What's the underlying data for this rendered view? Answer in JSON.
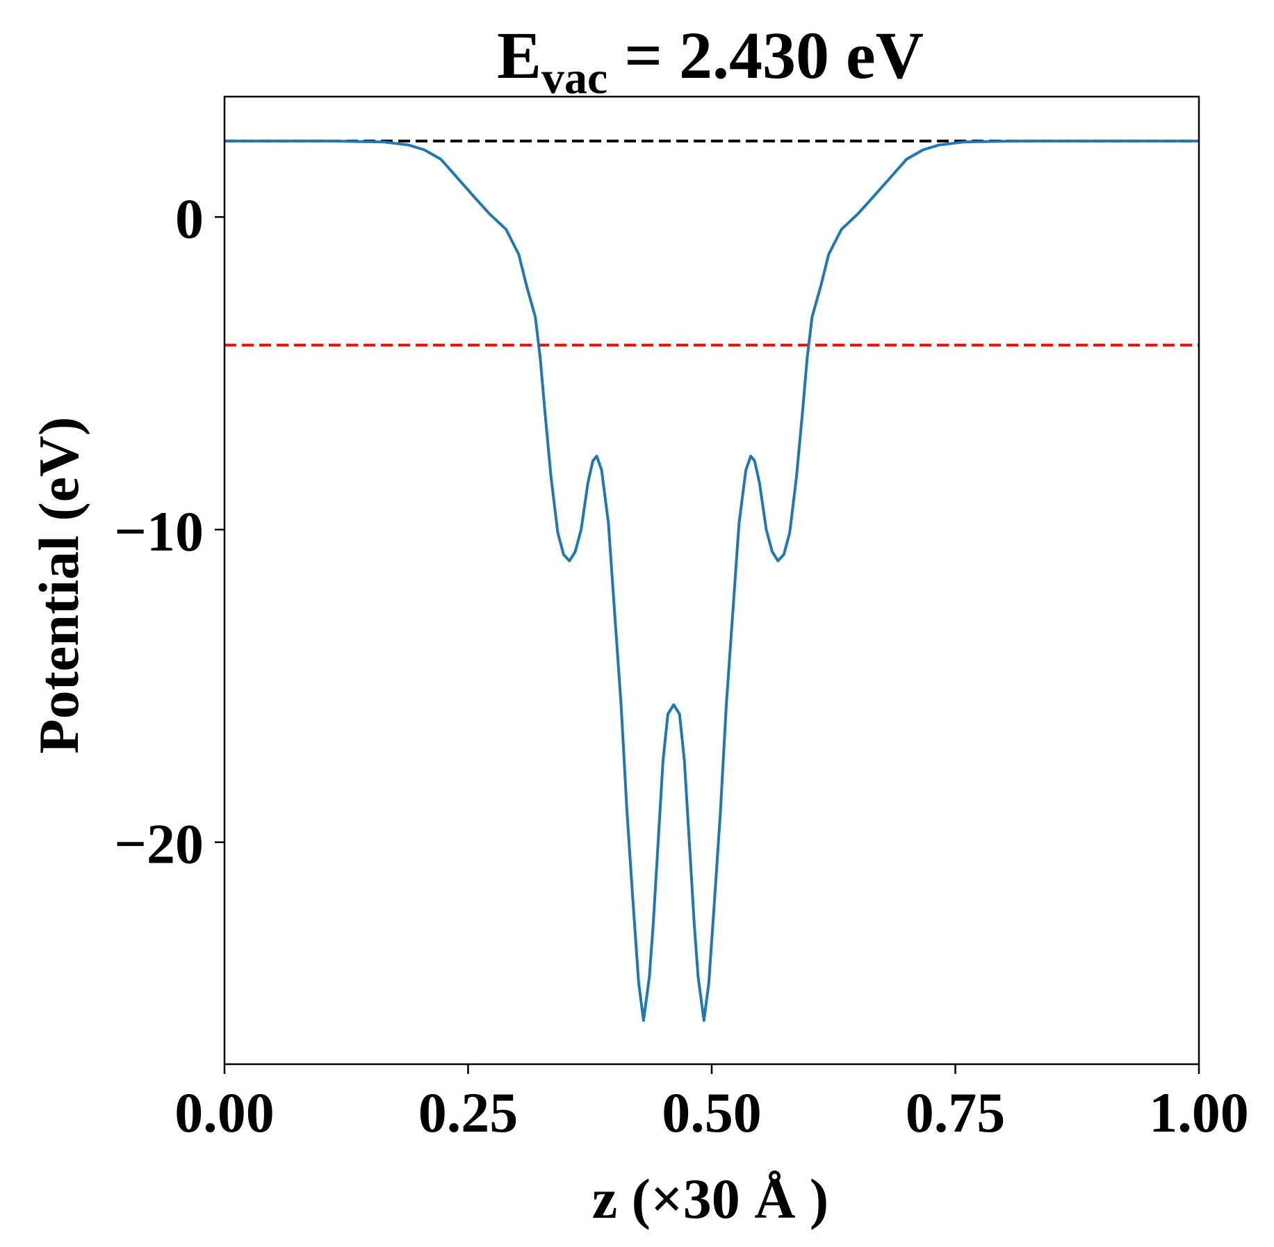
{
  "chart_data": {
    "type": "line",
    "title_main": "E",
    "title_sub": "vac",
    "title_rest": " = 2.430 eV",
    "xlabel": "z (×30 Å )",
    "ylabel": "Potential (eV)",
    "xlim": [
      0,
      1
    ],
    "ylim": [
      -27.1,
      3.85
    ],
    "xticks": [
      0,
      0.25,
      0.5,
      0.75,
      1.0
    ],
    "xtick_labels": [
      "0.00",
      "0.25",
      "0.50",
      "0.75",
      "1.00"
    ],
    "yticks": [
      0,
      -10,
      -20
    ],
    "ytick_labels": [
      "0",
      "−10",
      "−20"
    ],
    "grid": false,
    "series": [
      {
        "color": "#1f77b4",
        "x": [
          0,
          0.105,
          0.163,
          0.189,
          0.205,
          0.222,
          0.239,
          0.256,
          0.272,
          0.289,
          0.302,
          0.31,
          0.319,
          0.324,
          0.329,
          0.335,
          0.342,
          0.348,
          0.354,
          0.36,
          0.366,
          0.373,
          0.378,
          0.382,
          0.387,
          0.394,
          0.4,
          0.407,
          0.413,
          0.419,
          0.425,
          0.43,
          0.436,
          0.44,
          0.445,
          0.45,
          0.455,
          0.461,
          0.467,
          0.472,
          0.477,
          0.482,
          0.486,
          0.492,
          0.497,
          0.503,
          0.509,
          0.515,
          0.522,
          0.528,
          0.535,
          0.54,
          0.544,
          0.549,
          0.556,
          0.562,
          0.568,
          0.574,
          0.58,
          0.587,
          0.593,
          0.598,
          0.603,
          0.612,
          0.62,
          0.633,
          0.65,
          0.666,
          0.683,
          0.7,
          0.717,
          0.733,
          0.759,
          0.817,
          0.9,
          1.0
        ],
        "y": [
          2.43,
          2.43,
          2.4,
          2.3,
          2.15,
          1.85,
          1.25,
          0.65,
          0.1,
          -0.4,
          -1.2,
          -2.2,
          -3.2,
          -4.5,
          -6.3,
          -8.3,
          -10.1,
          -10.8,
          -11.0,
          -10.7,
          -10.0,
          -8.5,
          -7.8,
          -7.65,
          -8.1,
          -9.8,
          -12.5,
          -15.6,
          -19.0,
          -21.8,
          -24.5,
          -25.7,
          -24.3,
          -22.6,
          -20.0,
          -17.4,
          -15.9,
          -15.6,
          -15.9,
          -17.4,
          -20.0,
          -22.6,
          -24.3,
          -25.7,
          -24.5,
          -21.8,
          -19.0,
          -15.6,
          -12.5,
          -9.8,
          -8.1,
          -7.65,
          -7.8,
          -8.5,
          -10.0,
          -10.7,
          -11.0,
          -10.8,
          -10.1,
          -8.3,
          -6.3,
          -4.5,
          -3.2,
          -2.2,
          -1.2,
          -0.4,
          0.1,
          0.65,
          1.25,
          1.85,
          2.15,
          2.3,
          2.4,
          2.43,
          2.43,
          2.43
        ]
      }
    ],
    "hlines": [
      {
        "y": 2.43,
        "color": "#000000",
        "style": "dashed"
      },
      {
        "y": -4.1,
        "color": "#ff0000",
        "style": "dashed"
      }
    ]
  }
}
